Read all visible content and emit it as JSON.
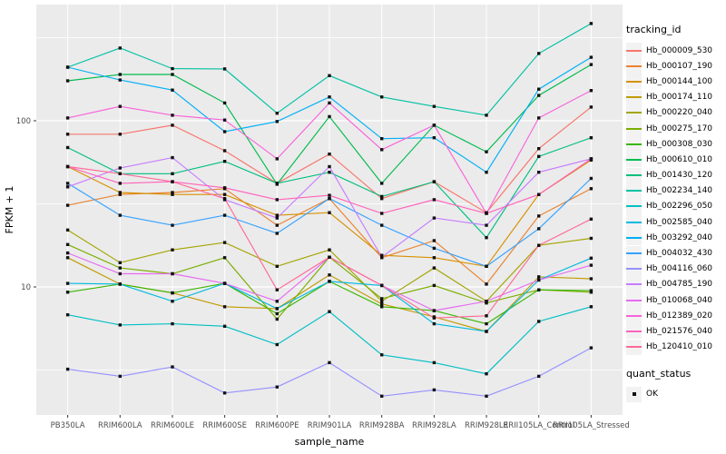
{
  "chart_data": {
    "type": "line",
    "title": "",
    "xlabel": "sample_name",
    "ylabel": "FPKM + 1",
    "y_scale": "log10",
    "y_tick_labels": [
      "100",
      "10"
    ],
    "y_ticks": [
      100,
      10
    ],
    "y_range_approx": [
      1.7,
      500
    ],
    "grid": true,
    "panel_color": "#EBEBEB",
    "grid_color": "#FFFFFF",
    "axis_text_color": "#4D4D4D",
    "marker_color": "#111111",
    "categories": [
      "PB350LA",
      "RRIM600LA",
      "RRIM600LE",
      "RRIM600SE",
      "RRIM600PE",
      "RRIM901LA",
      "RRIM928BA",
      "RRIM928LA",
      "RRIM928LE",
      "RRII105LA_Control",
      "RRII105LA_Stressed"
    ],
    "legend": {
      "title": "tracking_id",
      "position": "right"
    },
    "legend2": {
      "title": "quant_status",
      "items": [
        {
          "label": "OK",
          "marker": "black-square"
        }
      ]
    },
    "series": [
      {
        "name": "Hb_000009_530",
        "color": "#F8766D",
        "values": [
          83,
          83,
          94,
          66,
          42,
          63,
          34,
          43,
          28,
          68,
          121
        ]
      },
      {
        "name": "Hb_000107_190",
        "color": "#EA8331",
        "values": [
          31,
          36,
          37,
          39,
          23.5,
          34,
          15,
          19,
          10.4,
          26.7,
          39
        ]
      },
      {
        "name": "Hb_000144_100",
        "color": "#D89000",
        "values": [
          53,
          37,
          36,
          36,
          27,
          28,
          15.5,
          15,
          13.3,
          36,
          58
        ]
      },
      {
        "name": "Hb_000174_110",
        "color": "#C09B00",
        "values": [
          15,
          10.4,
          9.2,
          7.6,
          7.4,
          11.8,
          7.9,
          6.6,
          5.4,
          11.5,
          11.2
        ]
      },
      {
        "name": "Hb_000220_040",
        "color": "#A3A500",
        "values": [
          22,
          14,
          16.7,
          18.5,
          13.3,
          16.7,
          8.2,
          13,
          8.2,
          17.8,
          19.6
        ]
      },
      {
        "name": "Hb_000275_170",
        "color": "#7CAE00",
        "values": [
          18,
          13,
          12,
          15,
          6.4,
          15.1,
          8.5,
          10.2,
          8,
          9.6,
          9.3
        ]
      },
      {
        "name": "Hb_000308_030",
        "color": "#39B600",
        "values": [
          9.3,
          10.4,
          9.2,
          10.5,
          6.9,
          10.8,
          7.6,
          7.2,
          6,
          9.6,
          9.5
        ]
      },
      {
        "name": "Hb_000610_010",
        "color": "#00BB4E",
        "values": [
          174,
          190,
          190,
          128,
          41.5,
          106,
          42,
          94,
          65,
          142,
          218
        ]
      },
      {
        "name": "Hb_001430_120",
        "color": "#00BF7D",
        "values": [
          69,
          48,
          48,
          57,
          42,
          49,
          35,
          43,
          19.8,
          61,
          79
        ]
      },
      {
        "name": "Hb_002234_140",
        "color": "#00C1A3",
        "values": [
          210,
          274,
          206,
          205,
          111,
          187,
          139,
          122,
          108,
          254,
          385
        ]
      },
      {
        "name": "Hb_002296_050",
        "color": "#00BFC4",
        "values": [
          6.8,
          5.9,
          6,
          5.8,
          4.5,
          7.1,
          3.9,
          3.5,
          3,
          6.2,
          7.6
        ]
      },
      {
        "name": "Hb_002585_040",
        "color": "#00BAE0",
        "values": [
          10.5,
          10.4,
          8.2,
          10.5,
          7.4,
          10.8,
          10.2,
          6,
          5.4,
          11,
          14.9
        ]
      },
      {
        "name": "Hb_003292_040",
        "color": "#00B0F6",
        "values": [
          210,
          176,
          153,
          86,
          99,
          139,
          78,
          79,
          49,
          155,
          241
        ]
      },
      {
        "name": "Hb_004032_430",
        "color": "#35A2FF",
        "values": [
          42,
          27,
          23.5,
          27,
          21,
          34,
          23.5,
          17.1,
          13.3,
          22.4,
          45
        ]
      },
      {
        "name": "Hb_004116_060",
        "color": "#9590FF",
        "values": [
          3.2,
          2.9,
          3.3,
          2.3,
          2.5,
          3.5,
          2.2,
          2.4,
          2.2,
          2.9,
          4.3
        ]
      },
      {
        "name": "Hb_004785_190",
        "color": "#C77CFF",
        "values": [
          40,
          52,
          60,
          33.5,
          26,
          53,
          15.1,
          26,
          23.5,
          49,
          59
        ]
      },
      {
        "name": "Hb_010068_040",
        "color": "#E76BF3",
        "values": [
          16,
          12,
          12,
          10.5,
          8.2,
          15.1,
          10.2,
          7.2,
          8.2,
          11,
          13.5
        ]
      },
      {
        "name": "Hb_012389_020",
        "color": "#FA62DB",
        "values": [
          104,
          122,
          108,
          101,
          59,
          128,
          67,
          94,
          27.7,
          104,
          152
        ]
      },
      {
        "name": "Hb_021576_040",
        "color": "#FF62BC",
        "values": [
          53,
          42,
          43,
          39.5,
          33.5,
          35.6,
          27.7,
          33.5,
          27.7,
          36,
          59
        ]
      },
      {
        "name": "Hb_120410_010",
        "color": "#FF6A98",
        "values": [
          53,
          48,
          43,
          34,
          9.6,
          15.1,
          10.2,
          6.5,
          6.7,
          17.8,
          25.6
        ]
      }
    ]
  }
}
